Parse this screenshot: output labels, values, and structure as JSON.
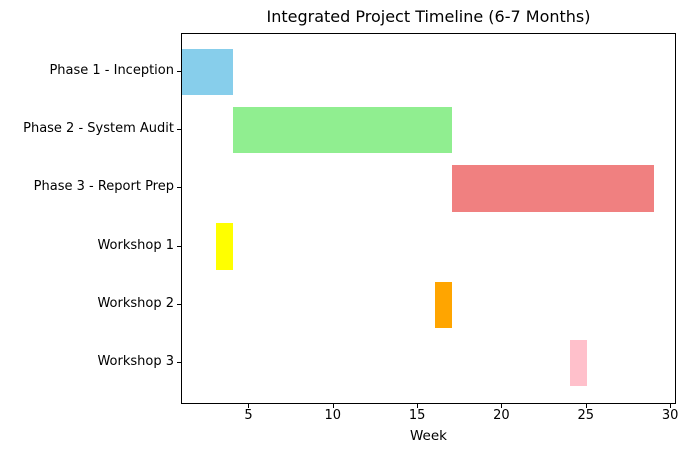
{
  "chart_data": {
    "type": "bar",
    "subtype": "horizontal-gantt",
    "title": "Integrated Project Timeline (6-7 Months)",
    "xlabel": "Week",
    "xlim": [
      1,
      30.35
    ],
    "xticks": [
      5,
      10,
      15,
      20,
      25,
      30
    ],
    "grid": false,
    "legend_position": "none",
    "categories": [
      "Phase 1 - Inception",
      "Phase 2 - System Audit",
      "Phase 3 - Report Prep",
      "Workshop 1",
      "Workshop 2",
      "Workshop 3"
    ],
    "tasks": [
      {
        "label": "Phase 1 - Inception",
        "start_week": 1,
        "end_week": 4,
        "duration_weeks": 3,
        "color": "#87CEEB"
      },
      {
        "label": "Phase 2 - System Audit",
        "start_week": 4,
        "end_week": 17,
        "duration_weeks": 13,
        "color": "#90EE90"
      },
      {
        "label": "Phase 3 - Report Prep",
        "start_week": 17,
        "end_week": 29,
        "duration_weeks": 12,
        "color": "#F08080"
      },
      {
        "label": "Workshop 1",
        "start_week": 3,
        "end_week": 4,
        "duration_weeks": 1,
        "color": "#FFFF00"
      },
      {
        "label": "Workshop 2",
        "start_week": 16,
        "end_week": 17,
        "duration_weeks": 1,
        "color": "#FFA500"
      },
      {
        "label": "Workshop 3",
        "start_week": 24,
        "end_week": 25,
        "duration_weeks": 1,
        "color": "#FFC0CB"
      }
    ],
    "colors": {
      "axis": "#000000",
      "text": "#000000",
      "background": "#FFFFFF"
    }
  }
}
